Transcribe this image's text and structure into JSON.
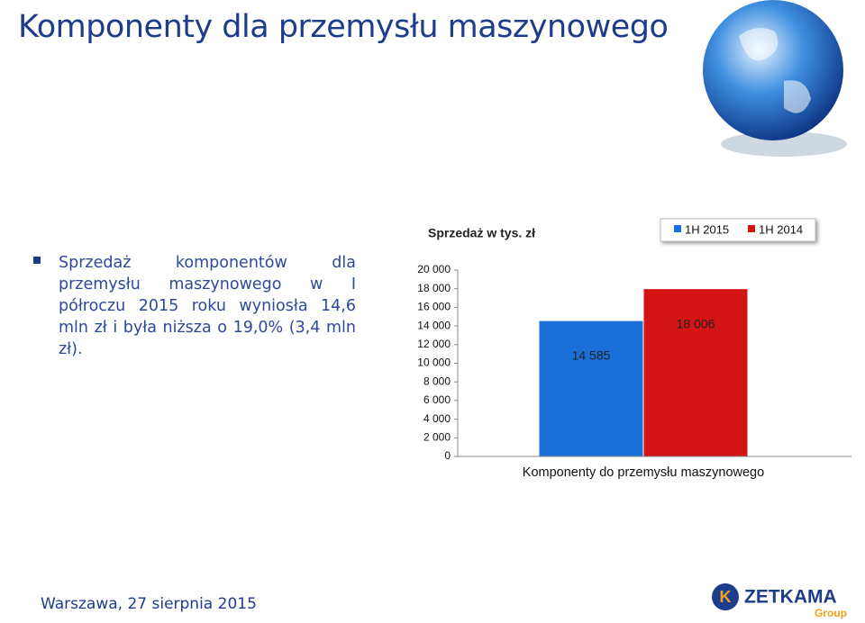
{
  "header": {
    "title": "Komponenty dla przemysłu maszynowego"
  },
  "bullet": {
    "text": "Sprzedaż komponentów dla przemysłu maszynowego w I półroczu 2015 roku wyniosła 14,6 mln zł i była niższa o 19,0% (3,4 mln zł)."
  },
  "chart_data": {
    "type": "bar",
    "title": "Sprzedaż w tys. zł",
    "categories": [
      "Komponenty do przemysłu maszynowego"
    ],
    "series": [
      {
        "name": "1H 2015",
        "color": "#1b6fd8",
        "values": [
          14585
        ],
        "value_labels": [
          "14 585"
        ]
      },
      {
        "name": "1H 2014",
        "color": "#d21414",
        "values": [
          18006
        ],
        "value_labels": [
          "18 006"
        ]
      }
    ],
    "ylim": [
      0,
      20000
    ],
    "yticks": [
      0,
      {
        "value": 2000,
        "label": "2 000"
      },
      {
        "value": 4000,
        "label": "4 000"
      },
      {
        "value": 6000,
        "label": "6 000"
      },
      {
        "value": 8000,
        "label": "8 000"
      },
      {
        "value": 10000,
        "label": "10 000"
      },
      {
        "value": 12000,
        "label": "12 000"
      },
      {
        "value": 14000,
        "label": "14 000"
      },
      {
        "value": 16000,
        "label": "16 000"
      },
      {
        "value": 18000,
        "label": "18 000"
      },
      {
        "value": 20000,
        "label": "20 000"
      }
    ],
    "legend": "top-right",
    "grid": false
  },
  "footer": {
    "text": "Warszawa, 27 sierpnia 2015"
  },
  "logo": {
    "letter": "K",
    "name": "ZETKAMA",
    "group": "Group"
  }
}
